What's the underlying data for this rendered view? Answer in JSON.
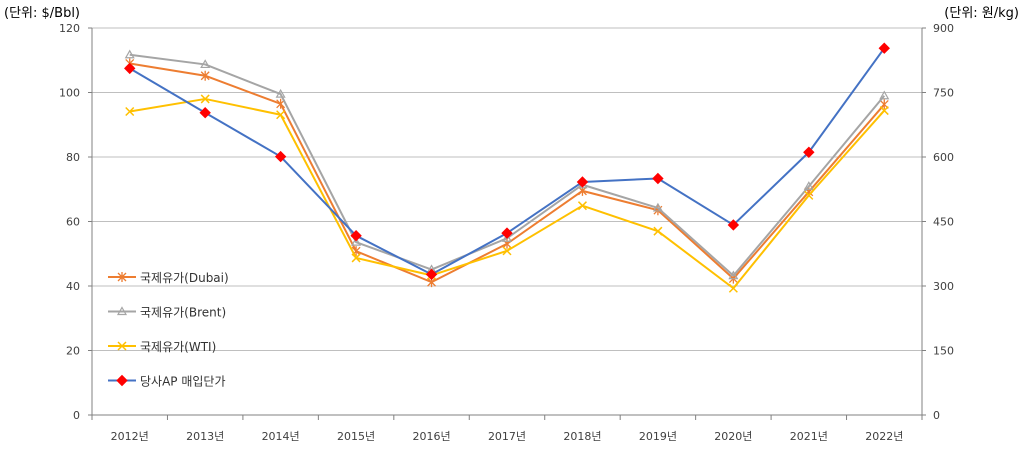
{
  "chart_data": {
    "type": "line",
    "left_unit": "(단위: $/Bbl)",
    "right_unit": "(단위: 원/kg)",
    "categories": [
      "2012년",
      "2013년",
      "2014년",
      "2015년",
      "2016년",
      "2017년",
      "2018년",
      "2019년",
      "2020년",
      "2021년",
      "2022년"
    ],
    "y_left": {
      "min": 0,
      "max": 120,
      "ticks": [
        "0",
        "20",
        "40",
        "60",
        "80",
        "100",
        "120"
      ]
    },
    "y_right": {
      "min": 0,
      "max": 900,
      "ticks": [
        "0",
        "150",
        "300",
        "450",
        "600",
        "750",
        "900"
      ]
    },
    "grid": true,
    "legend_position": "left-inside",
    "series": [
      {
        "name": "국제유가(Dubai)",
        "axis": "left",
        "color": "#ED7D31",
        "marker": "asterisk",
        "values": [
          109,
          105.2,
          96.5,
          50.8,
          41.2,
          53.1,
          69.5,
          63.5,
          42.3,
          69.2,
          96.3
        ]
      },
      {
        "name": "국제유가(Brent)",
        "axis": "left",
        "color": "#A5A5A5",
        "marker": "triangle",
        "values": [
          111.7,
          108.7,
          99.5,
          53.6,
          45.1,
          54.8,
          71.4,
          64.2,
          43.2,
          70.9,
          99.0
        ]
      },
      {
        "name": "국제유가(WTI)",
        "axis": "left",
        "color": "#FFC000",
        "marker": "x",
        "values": [
          94.1,
          98.0,
          93.1,
          48.7,
          43.3,
          50.9,
          64.9,
          57.0,
          39.3,
          68.1,
          94.4
        ]
      },
      {
        "name": "당사AP 매입단가",
        "axis": "right",
        "color": "#4472C4",
        "marker": "diamond",
        "marker_color": "#FF0000",
        "values": [
          806,
          703,
          601,
          417,
          327,
          423,
          542,
          550,
          442,
          611,
          853
        ]
      }
    ]
  }
}
